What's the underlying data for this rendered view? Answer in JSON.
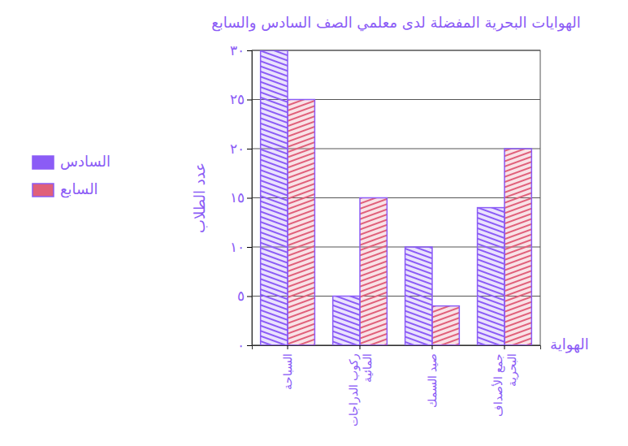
{
  "chart_data": {
    "type": "bar",
    "title": "الهوايات البحرية المفضلة لدى معلمي الصف السادس والسابع",
    "x_label": "الهواية",
    "y_label": "عدد الطلاب",
    "categories": [
      "السباحة",
      "ركوب الدراجات المائية",
      "صيد السمك",
      "جمع الأصداف البحرية"
    ],
    "series": [
      {
        "name": "السادس",
        "color": "#8b5cf6",
        "values": [
          30,
          5,
          10,
          14
        ]
      },
      {
        "name": "السابع",
        "color": "#e0607a",
        "values": [
          25,
          15,
          4,
          20
        ]
      }
    ],
    "ylim": [
      0,
      30
    ],
    "yticks": [
      {
        "value": 0,
        "label": "٠"
      },
      {
        "value": 5,
        "label": "٥"
      },
      {
        "value": 10,
        "label": "١٠"
      },
      {
        "value": 15,
        "label": "١٥"
      },
      {
        "value": 20,
        "label": "٢٠"
      },
      {
        "value": 25,
        "label": "٢٥"
      },
      {
        "value": 30,
        "label": "٣٠"
      }
    ],
    "grid": true,
    "legend": "left"
  }
}
